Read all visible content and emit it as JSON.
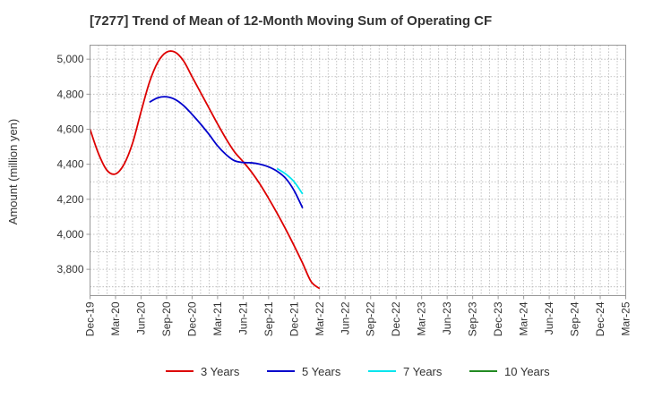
{
  "chart_data": {
    "type": "line",
    "title": "[7277]  Trend of Mean of 12-Month Moving Sum of Operating CF",
    "xlabel": "",
    "ylabel": "Amount (million yen)",
    "ylim": [
      3650,
      5080
    ],
    "yticks": [
      3800,
      4000,
      4200,
      4400,
      4600,
      4800,
      5000
    ],
    "ytick_labels": [
      "3,800",
      "4,000",
      "4,200",
      "4,400",
      "4,600",
      "4,800",
      "5,000"
    ],
    "x_tick_labels": [
      "Dec-19",
      "Mar-20",
      "Jun-20",
      "Sep-20",
      "Dec-20",
      "Mar-21",
      "Jun-21",
      "Sep-21",
      "Dec-21",
      "Mar-22",
      "Jun-22",
      "Sep-22",
      "Dec-22",
      "Mar-23",
      "Jun-23",
      "Sep-23",
      "Dec-23",
      "Mar-24",
      "Jun-24",
      "Sep-24",
      "Dec-24",
      "Mar-25"
    ],
    "legend_position": "bottom",
    "grid": true,
    "series": [
      {
        "name": "3 Years",
        "color": "#dd0000",
        "points": [
          [
            0,
            4600
          ],
          [
            1,
            4460
          ],
          [
            2,
            4365
          ],
          [
            3,
            4345
          ],
          [
            4,
            4400
          ],
          [
            5,
            4520
          ],
          [
            6,
            4700
          ],
          [
            7,
            4870
          ],
          [
            8,
            4985
          ],
          [
            9,
            5040
          ],
          [
            10,
            5040
          ],
          [
            11,
            4990
          ],
          [
            12,
            4900
          ],
          [
            13,
            4810
          ],
          [
            14,
            4720
          ],
          [
            15,
            4630
          ],
          [
            16,
            4545
          ],
          [
            17,
            4470
          ],
          [
            18,
            4415
          ],
          [
            19,
            4355
          ],
          [
            20,
            4285
          ],
          [
            21,
            4205
          ],
          [
            22,
            4120
          ],
          [
            23,
            4030
          ],
          [
            24,
            3935
          ],
          [
            25,
            3835
          ],
          [
            26,
            3730
          ],
          [
            27,
            3690
          ]
        ]
      },
      {
        "name": "5 Years",
        "color": "#0000cc",
        "points": [
          [
            7,
            4755
          ],
          [
            8,
            4780
          ],
          [
            9,
            4785
          ],
          [
            10,
            4770
          ],
          [
            11,
            4735
          ],
          [
            12,
            4685
          ],
          [
            13,
            4630
          ],
          [
            14,
            4570
          ],
          [
            15,
            4505
          ],
          [
            16,
            4455
          ],
          [
            17,
            4420
          ],
          [
            18,
            4410
          ],
          [
            19,
            4408
          ],
          [
            20,
            4400
          ],
          [
            21,
            4385
          ],
          [
            22,
            4360
          ],
          [
            23,
            4320
          ],
          [
            24,
            4250
          ],
          [
            25,
            4150
          ]
        ]
      },
      {
        "name": "7 Years",
        "color": "#00e5ee",
        "points": [
          [
            22,
            4375
          ],
          [
            23,
            4345
          ],
          [
            24,
            4300
          ],
          [
            25,
            4230
          ]
        ]
      },
      {
        "name": "10 Years",
        "color": "#228b22",
        "points": []
      }
    ]
  }
}
